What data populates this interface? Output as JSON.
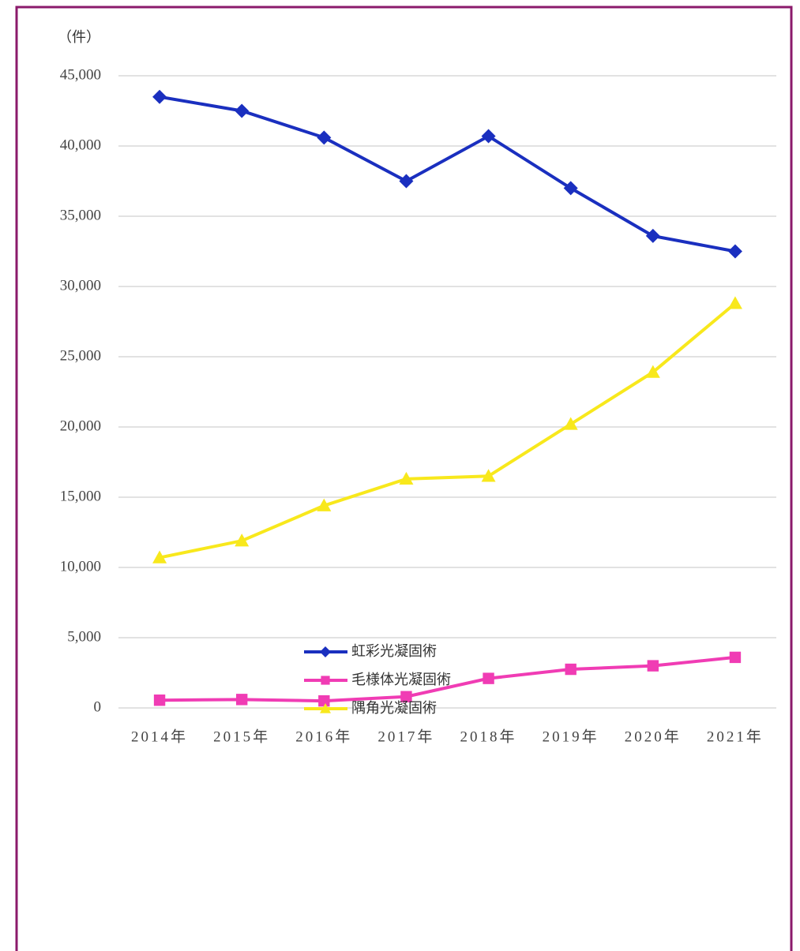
{
  "chart_data": {
    "type": "line",
    "y_unit": "（件）",
    "categories": [
      "2014年",
      "2015年",
      "2016年",
      "2017年",
      "2018年",
      "2019年",
      "2020年",
      "2021年"
    ],
    "series": [
      {
        "name": "虹彩光凝固術",
        "color": "#1a2fbf",
        "marker": "diamond",
        "values": [
          43500,
          42500,
          40600,
          37500,
          40700,
          37000,
          33600,
          32500
        ]
      },
      {
        "name": "毛様体光凝固術",
        "color": "#f03cb4",
        "marker": "square",
        "values": [
          550,
          600,
          500,
          800,
          2100,
          2750,
          3000,
          3600
        ]
      },
      {
        "name": "隅角光凝固術",
        "color": "#f8e81c",
        "marker": "triangle",
        "values": [
          10700,
          11900,
          14400,
          16300,
          16500,
          20200,
          23900,
          28800
        ]
      }
    ],
    "ylim": [
      0,
      45000
    ],
    "yticks": [
      0,
      {
        "value": 5000,
        "label": "5,000"
      },
      {
        "value": 10000,
        "label": "10,000"
      },
      {
        "value": 15000,
        "label": "15,000"
      },
      {
        "value": 20000,
        "label": "20,000"
      },
      {
        "value": 25000,
        "label": "25,000"
      },
      {
        "value": 30000,
        "label": "30,000"
      },
      {
        "value": 35000,
        "label": "35,000"
      },
      {
        "value": 40000,
        "label": "40,000"
      },
      {
        "value": 45000,
        "label": "45,000"
      }
    ],
    "grid": true,
    "legend": "bottom"
  }
}
